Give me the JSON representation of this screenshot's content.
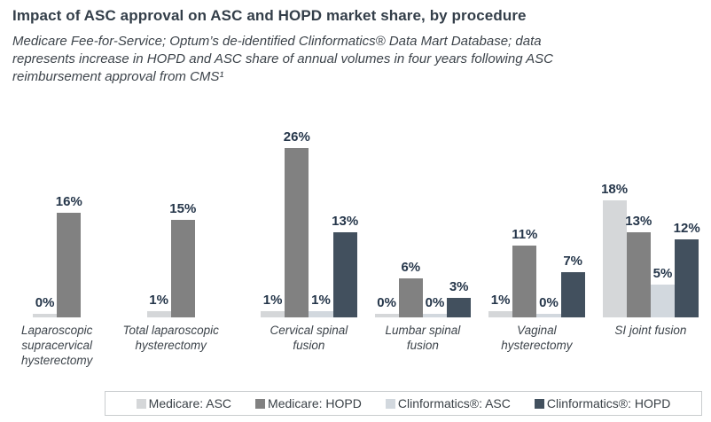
{
  "title": "Impact of ASC approval on ASC and HOPD market share, by procedure",
  "subtitle_lines": [
    "Medicare Fee-for-Service; Optum’s de-identified Clinformatics® Data Mart Database; data",
    "represents increase in HOPD and ASC share of annual volumes in four years following ASC",
    "reimbursement approval from CMS¹"
  ],
  "chart_data": {
    "type": "bar",
    "title": "Impact of ASC approval on ASC and HOPD market share, by procedure",
    "xlabel": "",
    "ylabel": "",
    "ylim": [
      0,
      28
    ],
    "grid": false,
    "legend_position": "bottom",
    "value_label_suffix": "%",
    "categories": [
      "Laparoscopic supracervical hysterectomy",
      "Total laparoscopic hysterectomy",
      "Cervical spinal fusion",
      "Lumbar spinal fusion",
      "Vaginal hysterectomy",
      "SI joint fusion"
    ],
    "series": [
      {
        "name": "Medicare: ASC",
        "color": "#d5d7d9",
        "values": [
          0,
          1,
          1,
          0,
          1,
          18
        ]
      },
      {
        "name": "Medicare: HOPD",
        "color": "#818181",
        "values": [
          16,
          15,
          26,
          6,
          11,
          13
        ]
      },
      {
        "name": "Clinformatics®: ASC",
        "color": "#d2d8de",
        "values": [
          null,
          null,
          1,
          0,
          0,
          5
        ]
      },
      {
        "name": "Clinformatics®: HOPD",
        "color": "#42505e",
        "values": [
          null,
          null,
          13,
          3,
          7,
          12
        ]
      }
    ],
    "value_labels": [
      [
        "0%",
        "16%",
        null,
        null
      ],
      [
        "1%",
        "15%",
        null,
        null
      ],
      [
        "1%",
        "26%",
        "1%",
        "13%"
      ],
      [
        "0%",
        "6%",
        "0%",
        "3%"
      ],
      [
        "1%",
        "11%",
        "0%",
        "7%"
      ],
      [
        "18%",
        "13%",
        "5%",
        "12%"
      ]
    ]
  }
}
